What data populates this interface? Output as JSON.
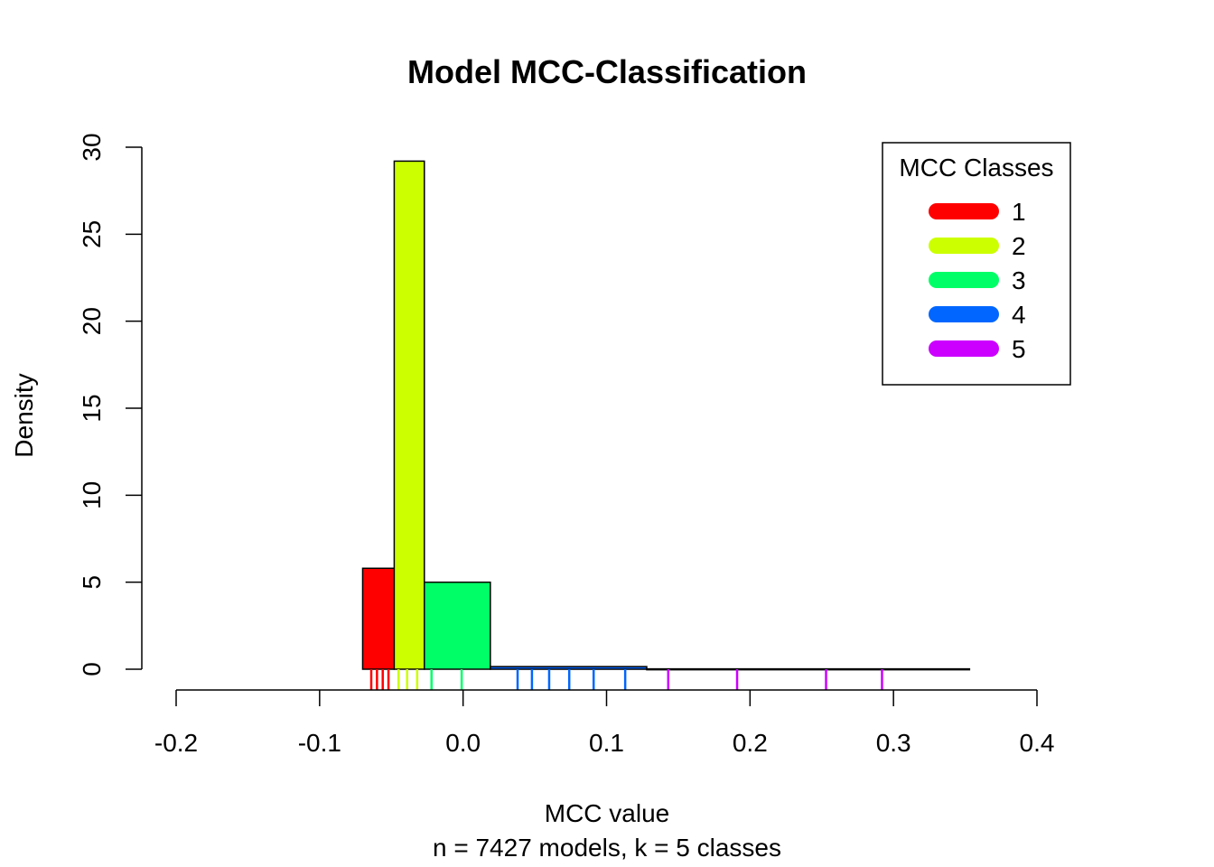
{
  "chart_data": {
    "type": "bar",
    "title": "Model MCC-Classification",
    "xlabel": "MCC value",
    "subtitle": "n = 7427 models, k = 5 classes",
    "ylabel": "Density",
    "xlim": [
      -0.2,
      0.4
    ],
    "ylim": [
      0,
      30
    ],
    "x_ticks": [
      "-0.2",
      "-0.1",
      "0.0",
      "0.1",
      "0.2",
      "0.3",
      "0.4"
    ],
    "y_ticks": [
      "0",
      "5",
      "10",
      "15",
      "20",
      "25",
      "30"
    ],
    "grid": false,
    "legend_position": "top-right",
    "legend_title": "MCC Classes",
    "classes": [
      {
        "name": "1",
        "color": "#ff0000",
        "bin": [
          -0.07,
          -0.048
        ],
        "density": 5.8
      },
      {
        "name": "2",
        "color": "#ccff00",
        "bin": [
          -0.048,
          -0.027
        ],
        "density": 29.2
      },
      {
        "name": "3",
        "color": "#00ff66",
        "bin": [
          -0.027,
          0.019
        ],
        "density": 5.0
      },
      {
        "name": "4",
        "color": "#0066ff",
        "bin": [
          0.019,
          0.128
        ],
        "density": 0.15
      },
      {
        "name": "5",
        "color": "#cc00ff",
        "bin": [
          0.128,
          0.353
        ],
        "density": 0.02
      }
    ],
    "rug": [
      {
        "class": "1",
        "x": [
          -0.064,
          -0.06,
          -0.056,
          -0.052
        ]
      },
      {
        "class": "2",
        "x": [
          -0.045,
          -0.039,
          -0.032
        ]
      },
      {
        "class": "3",
        "x": [
          -0.022,
          -0.001
        ]
      },
      {
        "class": "4",
        "x": [
          0.038,
          0.048,
          0.06,
          0.074,
          0.091,
          0.113
        ]
      },
      {
        "class": "5",
        "x": [
          0.143,
          0.191,
          0.253,
          0.292
        ]
      }
    ]
  }
}
